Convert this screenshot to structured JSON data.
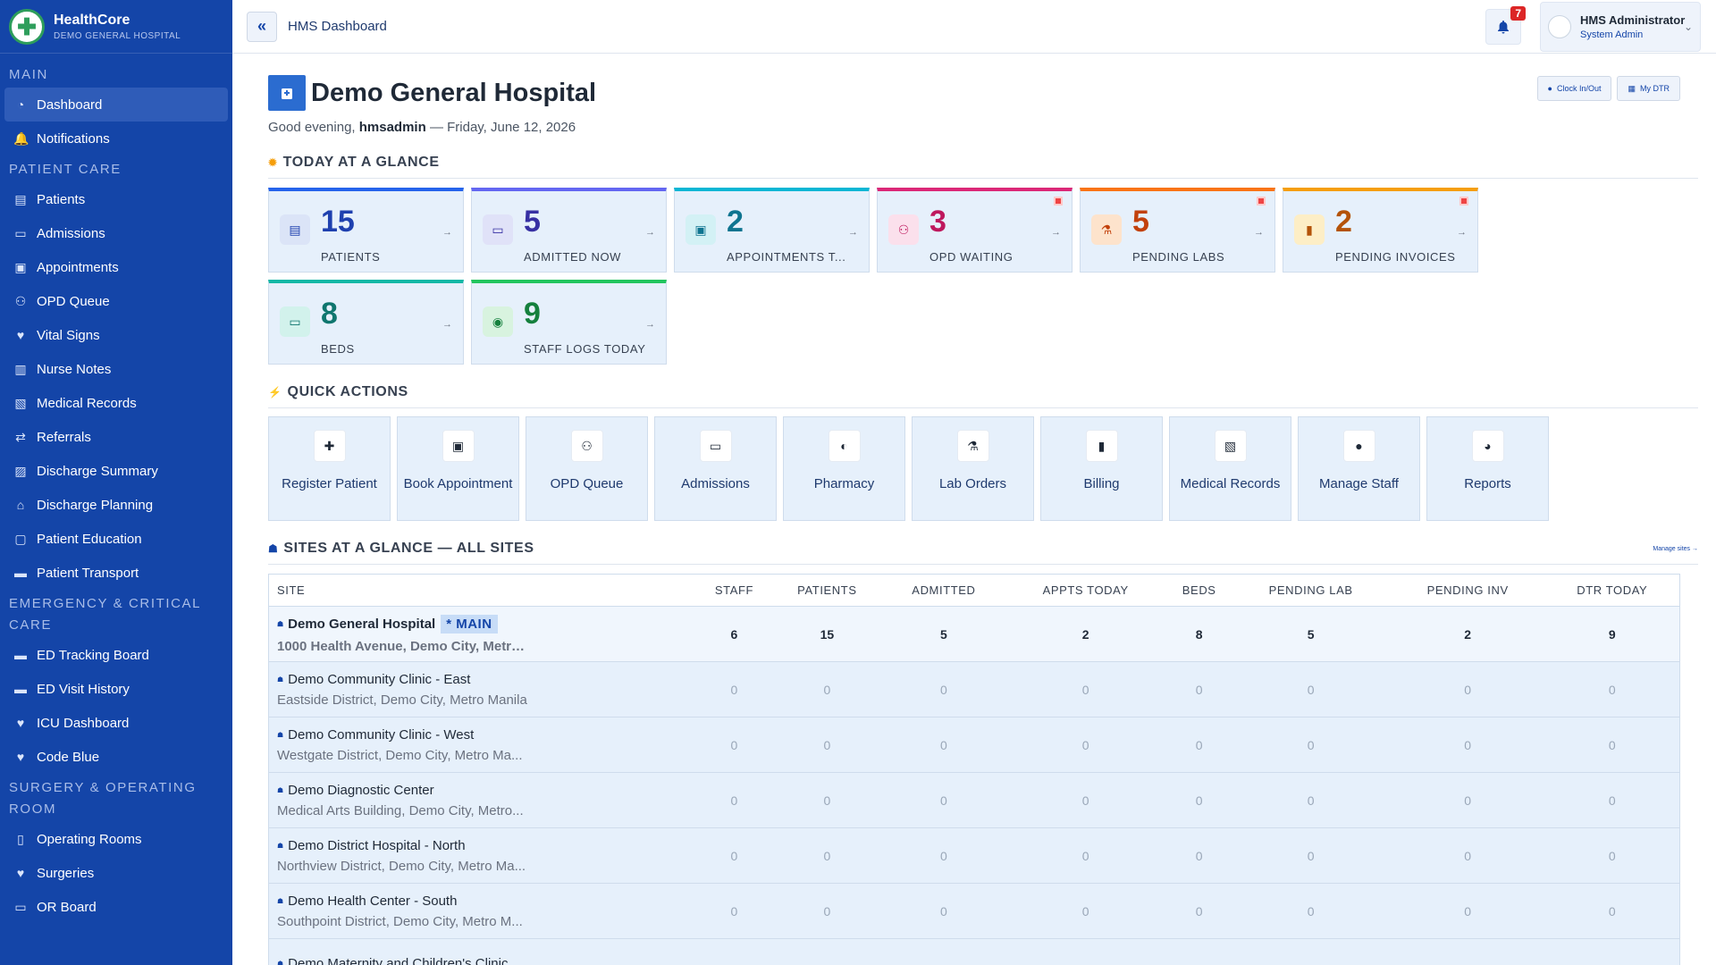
{
  "brand": {
    "name": "HealthCore",
    "subtitle": "DEMO GENERAL HOSPITAL"
  },
  "sidebar": {
    "sections": [
      {
        "title": "MAIN",
        "items": [
          {
            "label": "Dashboard",
            "icon": "dashboard-icon",
            "active": true
          },
          {
            "label": "Notifications",
            "icon": "bell-icon"
          }
        ]
      },
      {
        "title": "PATIENT CARE",
        "items": [
          {
            "label": "Patients",
            "icon": "patients-icon"
          },
          {
            "label": "Admissions",
            "icon": "bed-icon"
          },
          {
            "label": "Appointments",
            "icon": "calendar-check-icon"
          },
          {
            "label": "OPD Queue",
            "icon": "people-icon"
          },
          {
            "label": "Vital Signs",
            "icon": "heart-pulse-icon"
          },
          {
            "label": "Nurse Notes",
            "icon": "notes-icon"
          },
          {
            "label": "Medical Records",
            "icon": "records-icon"
          },
          {
            "label": "Referrals",
            "icon": "exchange-icon"
          },
          {
            "label": "Discharge Summary",
            "icon": "file-medical-icon"
          },
          {
            "label": "Discharge Planning",
            "icon": "house-medical-icon"
          },
          {
            "label": "Patient Education",
            "icon": "chalkboard-icon"
          },
          {
            "label": "Patient Transport",
            "icon": "ambulance-icon"
          }
        ]
      },
      {
        "title": "EMERGENCY & CRITICAL CARE",
        "items": [
          {
            "label": "ED Tracking Board",
            "icon": "ambulance-icon"
          },
          {
            "label": "ED Visit History",
            "icon": "ambulance-icon"
          },
          {
            "label": "ICU Dashboard",
            "icon": "heart-pulse-icon"
          },
          {
            "label": "Code Blue",
            "icon": "heart-pulse-icon"
          }
        ]
      },
      {
        "title": "SURGERY & OPERATING ROOM",
        "items": [
          {
            "label": "Operating Rooms",
            "icon": "door-icon"
          },
          {
            "label": "Surgeries",
            "icon": "heart-pulse-icon"
          },
          {
            "label": "OR Board",
            "icon": "monitor-icon"
          }
        ]
      }
    ]
  },
  "topbar": {
    "breadcrumb": "HMS Dashboard",
    "notifications_count": "7",
    "user_name": "HMS Administrator",
    "user_role": "System Admin"
  },
  "header": {
    "title": "Demo General Hospital",
    "greeting_prefix": "Good evening,",
    "username": "hmsadmin",
    "date": "— Friday, June 12, 2026",
    "clock_label": "Clock In/Out",
    "dtr_label": "My DTR"
  },
  "glance": {
    "title": "TODAY AT A GLANCE",
    "cards": [
      {
        "value": "15",
        "label": "PATIENTS",
        "color": "#1e40af",
        "bar": "#2563eb",
        "icon_bg": "#dbe4f7",
        "icon": "patients-icon",
        "alert": false
      },
      {
        "value": "5",
        "label": "ADMITTED NOW",
        "color": "#3730a3",
        "bar": "#6366f1",
        "icon_bg": "#e0e2f8",
        "icon": "bed-icon",
        "alert": false
      },
      {
        "value": "2",
        "label": "APPOINTMENTS T...",
        "color": "#0e7490",
        "bar": "#06b6d4",
        "icon_bg": "#d3f1f5",
        "icon": "calendar-check-icon",
        "alert": false
      },
      {
        "value": "3",
        "label": "OPD WAITING",
        "color": "#be185d",
        "bar": "#db2777",
        "icon_bg": "#fbe0ec",
        "icon": "people-icon",
        "alert": true
      },
      {
        "value": "5",
        "label": "PENDING LABS",
        "color": "#c2410c",
        "bar": "#f97316",
        "icon_bg": "#fde3cc",
        "icon": "flask-icon",
        "alert": true
      },
      {
        "value": "2",
        "label": "PENDING INVOICES",
        "color": "#b45309",
        "bar": "#f59e0b",
        "icon_bg": "#fdeec6",
        "icon": "invoice-icon",
        "alert": true
      },
      {
        "value": "8",
        "label": "BEDS",
        "color": "#0f766e",
        "bar": "#14b8a6",
        "icon_bg": "#d2f2ec",
        "icon": "bed-icon",
        "alert": false
      },
      {
        "value": "9",
        "label": "STAFF LOGS TODAY",
        "color": "#15803d",
        "bar": "#22c55e",
        "icon_bg": "#d8f3df",
        "icon": "fingerprint-icon",
        "alert": false
      }
    ]
  },
  "quick": {
    "title": "QUICK ACTIONS",
    "actions": [
      {
        "label": "Register Patient",
        "icon": "user-plus-icon"
      },
      {
        "label": "Book Appointment",
        "icon": "calendar-plus-icon"
      },
      {
        "label": "OPD Queue",
        "icon": "people-icon"
      },
      {
        "label": "Admissions",
        "icon": "bed-icon"
      },
      {
        "label": "Pharmacy",
        "icon": "pills-icon"
      },
      {
        "label": "Lab Orders",
        "icon": "flask-icon"
      },
      {
        "label": "Billing",
        "icon": "invoice-icon"
      },
      {
        "label": "Medical Records",
        "icon": "records-icon"
      },
      {
        "label": "Manage Staff",
        "icon": "user-doctor-icon"
      },
      {
        "label": "Reports",
        "icon": "pie-chart-icon"
      }
    ]
  },
  "sites": {
    "title": "SITES AT A GLANCE — ALL SITES",
    "manage_label": "Manage sites →",
    "main_tag": "* MAIN",
    "columns": [
      "SITE",
      "STAFF",
      "PATIENTS",
      "ADMITTED",
      "APPTS TODAY",
      "BEDS",
      "PENDING LAB",
      "PENDING INV",
      "DTR TODAY"
    ],
    "rows": [
      {
        "name": "Demo General Hospital",
        "address": "1000 Health Avenue, Demo City, Metro ...",
        "main": true,
        "values": [
          "6",
          "15",
          "5",
          "2",
          "8",
          "5",
          "2",
          "9"
        ]
      },
      {
        "name": "Demo Community Clinic - East",
        "address": "Eastside District, Demo City, Metro Manila",
        "main": false,
        "values": [
          "0",
          "0",
          "0",
          "0",
          "0",
          "0",
          "0",
          "0"
        ]
      },
      {
        "name": "Demo Community Clinic - West",
        "address": "Westgate District, Demo City, Metro Ma...",
        "main": false,
        "values": [
          "0",
          "0",
          "0",
          "0",
          "0",
          "0",
          "0",
          "0"
        ]
      },
      {
        "name": "Demo Diagnostic Center",
        "address": "Medical Arts Building, Demo City, Metro...",
        "main": false,
        "values": [
          "0",
          "0",
          "0",
          "0",
          "0",
          "0",
          "0",
          "0"
        ]
      },
      {
        "name": "Demo District Hospital - North",
        "address": "Northview District, Demo City, Metro Ma...",
        "main": false,
        "values": [
          "0",
          "0",
          "0",
          "0",
          "0",
          "0",
          "0",
          "0"
        ]
      },
      {
        "name": "Demo Health Center - South",
        "address": "Southpoint District, Demo City, Metro M...",
        "main": false,
        "values": [
          "0",
          "0",
          "0",
          "0",
          "0",
          "0",
          "0",
          "0"
        ]
      },
      {
        "name": "Demo Maternity and Children's Clinic",
        "address": "",
        "main": false,
        "values": [
          "",
          "",
          "",
          "",
          "",
          "",
          "",
          ""
        ]
      }
    ]
  }
}
